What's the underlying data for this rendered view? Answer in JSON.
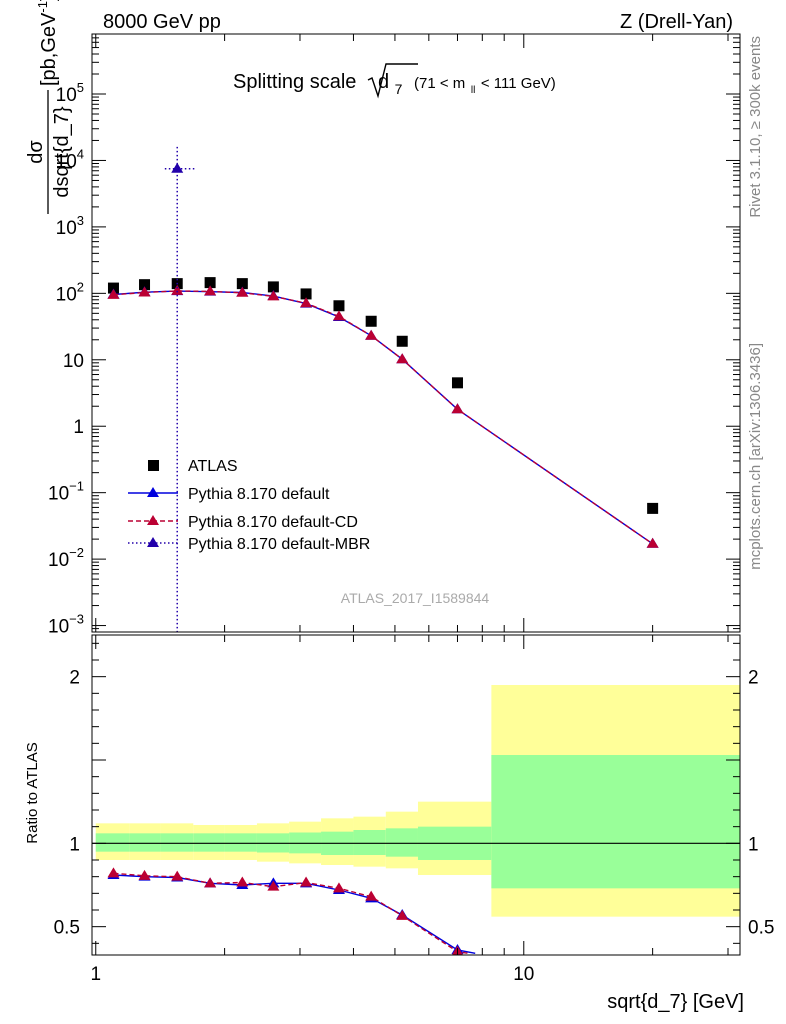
{
  "header": {
    "left": "8000 GeV pp",
    "right": "Z (Drell-Yan)"
  },
  "side_labels": {
    "top": "Rivet 3.1.10, ≥ 300k events",
    "bottom": "mcplots.cern.ch [arXiv:1306.3436]"
  },
  "chart_data": [
    {
      "type": "scatter",
      "title_main": "Splitting scale",
      "title_sym": "d",
      "title_sub": "7",
      "title_cut_pre": "(71 < m",
      "title_cut_sub": "ll",
      "title_cut_post": " < 111 GeV)",
      "ylabel_num": "dσ",
      "ylabel_den": "dsqrt{d_7}",
      "ylabel_unit": "[pb,GeV",
      "ylabel_unit_sup": "-1",
      "ylabel_unit_end": "]",
      "xscale": "log",
      "yscale": "log",
      "xlim": [
        0.98,
        32
      ],
      "ylim": [
        0.0008,
        800000
      ],
      "watermark": "ATLAS_2017_I1589844",
      "y_ticks": [
        {
          "v": 0.001,
          "b": "10",
          "e": "−3"
        },
        {
          "v": 0.01,
          "b": "10",
          "e": "−2"
        },
        {
          "v": 0.1,
          "b": "10",
          "e": "−1"
        },
        {
          "v": 1,
          "b": "1",
          "e": ""
        },
        {
          "v": 10,
          "b": "10",
          "e": ""
        },
        {
          "v": 100,
          "b": "10",
          "e": "2"
        },
        {
          "v": 1000,
          "b": "10",
          "e": "3"
        },
        {
          "v": 10000,
          "b": "10",
          "e": "4"
        },
        {
          "v": 100000,
          "b": "10",
          "e": "5"
        }
      ],
      "legend": [
        {
          "label": "ATLAS",
          "color": "#000000",
          "style": "data"
        },
        {
          "label": "Pythia 8.170 default",
          "color": "#0000dd",
          "style": "solid"
        },
        {
          "label": "Pythia 8.170 default-CD",
          "color": "#bb0033",
          "style": "dashed"
        },
        {
          "label": "Pythia 8.170 default-MBR",
          "color": "#2200aa",
          "style": "dotted"
        }
      ],
      "series": [
        {
          "name": "ATLAS",
          "color": "#000000",
          "style": "data",
          "x": [
            1.1,
            1.3,
            1.55,
            1.85,
            2.2,
            2.6,
            3.1,
            3.7,
            4.4,
            5.2,
            7.0,
            20.0
          ],
          "y": [
            120,
            135,
            140,
            145,
            140,
            125,
            98,
            65,
            38,
            19,
            4.5,
            0.058
          ]
        },
        {
          "name": "Pythia 8.170 default",
          "color": "#0000dd",
          "style": "solid",
          "x": [
            1.1,
            1.3,
            1.55,
            1.85,
            2.2,
            2.6,
            3.1,
            3.7,
            4.4,
            5.2,
            7.0,
            20.0
          ],
          "y": [
            96,
            104,
            108,
            106,
            103,
            91,
            70,
            44,
            23,
            10.2,
            1.8,
            0.017
          ]
        },
        {
          "name": "Pythia 8.170 default-CD",
          "color": "#bb0033",
          "style": "dashed",
          "x": [
            1.1,
            1.3,
            1.55,
            1.85,
            2.2,
            2.6,
            3.1,
            3.7,
            4.4,
            5.2,
            7.0,
            20.0
          ],
          "y": [
            95,
            103,
            109,
            107,
            102,
            90,
            71,
            45,
            23,
            10.2,
            1.8,
            0.017
          ]
        },
        {
          "name": "Pythia 8.170 default-MBR",
          "color": "#2200aa",
          "style": "dotted",
          "x": [
            1.55
          ],
          "y": [
            7500
          ],
          "yerr_up": 16000,
          "xerr": [
            1.45,
            1.7
          ]
        }
      ]
    },
    {
      "type": "line",
      "ylabel": "Ratio to ATLAS",
      "xlabel": "sqrt{d_7} [GeV]",
      "xscale": "log",
      "xlim": [
        0.98,
        32
      ],
      "ylim": [
        0.33,
        2.25
      ],
      "x_ticks": [
        {
          "v": 1,
          "label": "1"
        },
        {
          "v": 10,
          "label": "10"
        }
      ],
      "y_ticks": [
        {
          "v": 0.5,
          "label": "0.5"
        },
        {
          "v": 1,
          "label": "1"
        },
        {
          "v": 2,
          "label": "2"
        }
      ],
      "band_colors": {
        "outer": "#ffff99",
        "inner": "#99ff99"
      },
      "bands": [
        {
          "x0": 1.0,
          "x1": 1.2,
          "outer": [
            0.9,
            1.12
          ],
          "inner": [
            0.95,
            1.06
          ]
        },
        {
          "x0": 1.2,
          "x1": 1.42,
          "outer": [
            0.9,
            1.12
          ],
          "inner": [
            0.95,
            1.06
          ]
        },
        {
          "x0": 1.42,
          "x1": 1.69,
          "outer": [
            0.9,
            1.12
          ],
          "inner": [
            0.95,
            1.06
          ]
        },
        {
          "x0": 1.69,
          "x1": 2.0,
          "outer": [
            0.9,
            1.11
          ],
          "inner": [
            0.95,
            1.06
          ]
        },
        {
          "x0": 2.0,
          "x1": 2.38,
          "outer": [
            0.9,
            1.11
          ],
          "inner": [
            0.95,
            1.06
          ]
        },
        {
          "x0": 2.38,
          "x1": 2.83,
          "outer": [
            0.89,
            1.12
          ],
          "inner": [
            0.945,
            1.06
          ]
        },
        {
          "x0": 2.83,
          "x1": 3.36,
          "outer": [
            0.88,
            1.13
          ],
          "inner": [
            0.94,
            1.065
          ]
        },
        {
          "x0": 3.36,
          "x1": 4.0,
          "outer": [
            0.87,
            1.15
          ],
          "inner": [
            0.93,
            1.07
          ]
        },
        {
          "x0": 4.0,
          "x1": 4.76,
          "outer": [
            0.86,
            1.16
          ],
          "inner": [
            0.93,
            1.08
          ]
        },
        {
          "x0": 4.76,
          "x1": 5.66,
          "outer": [
            0.85,
            1.19
          ],
          "inner": [
            0.92,
            1.09
          ]
        },
        {
          "x0": 5.66,
          "x1": 8.4,
          "outer": [
            0.81,
            1.25
          ],
          "inner": [
            0.9,
            1.1
          ]
        },
        {
          "x0": 8.4,
          "x1": 32,
          "outer": [
            0.56,
            1.95
          ],
          "inner": [
            0.73,
            1.53
          ]
        }
      ],
      "series": [
        {
          "name": "Pythia 8.170 default",
          "color": "#0000dd",
          "style": "solid",
          "x": [
            1.1,
            1.3,
            1.55,
            1.85,
            2.2,
            2.6,
            3.1,
            3.7,
            4.4,
            5.2,
            7.0,
            7.7
          ],
          "y": [
            0.81,
            0.8,
            0.795,
            0.76,
            0.75,
            0.76,
            0.76,
            0.72,
            0.67,
            0.57,
            0.36,
            0.34
          ]
        },
        {
          "name": "Pythia 8.170 default-CD",
          "color": "#bb0033",
          "style": "dashed",
          "x": [
            1.1,
            1.3,
            1.55,
            1.85,
            2.2,
            2.6,
            3.1,
            3.7,
            4.4,
            5.2,
            7.0,
            7.4
          ],
          "y": [
            0.82,
            0.805,
            0.8,
            0.76,
            0.765,
            0.74,
            0.765,
            0.73,
            0.68,
            0.565,
            0.35,
            0.34
          ]
        }
      ]
    }
  ]
}
